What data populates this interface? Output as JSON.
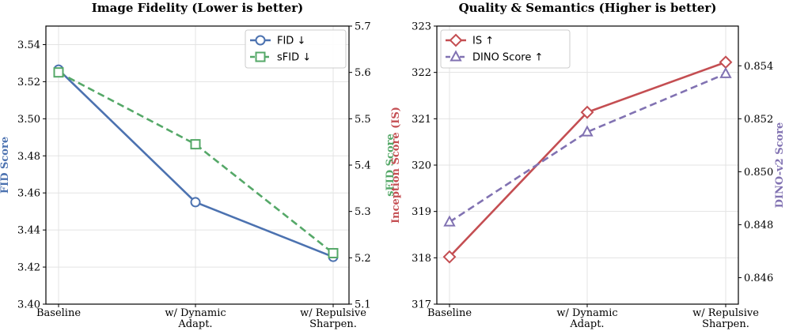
{
  "chart_data": [
    {
      "type": "line",
      "title": "Image Fidelity (Lower is better)",
      "categories": [
        "Baseline",
        "w/ Dynamic\nAdapt.",
        "w/ Repulsive\nSharpen."
      ],
      "left_axis": {
        "label": "FID Score",
        "color": "#4c72b0",
        "ylim": [
          3.4,
          3.55
        ],
        "ticks": [
          "3.40",
          "3.42",
          "3.44",
          "3.46",
          "3.48",
          "3.50",
          "3.52",
          "3.54"
        ]
      },
      "right_axis": {
        "label": "sFID Score",
        "color": "#55a868",
        "ylim": [
          5.1,
          5.7
        ],
        "ticks": [
          "5.1",
          "5.2",
          "5.3",
          "5.4",
          "5.5",
          "5.6",
          "5.7"
        ]
      },
      "series": [
        {
          "name": "FID ↓",
          "axis": "left",
          "values": [
            3.5265,
            3.455,
            3.4255
          ],
          "color": "#4c72b0",
          "marker": "circle",
          "dash": "solid"
        },
        {
          "name": "sFID ↓",
          "axis": "right",
          "values": [
            5.6,
            5.445,
            5.21
          ],
          "color": "#55a868",
          "marker": "square",
          "dash": "dashed"
        }
      ],
      "legend": "top-right",
      "grid": true
    },
    {
      "type": "line",
      "title": "Quality & Semantics (Higher is better)",
      "categories": [
        "Baseline",
        "w/ Dynamic\nAdapt.",
        "w/ Repulsive\nSharpen."
      ],
      "left_axis": {
        "label": "Inception Score (IS)",
        "color": "#c44e52",
        "ylim": [
          317,
          323
        ],
        "ticks": [
          "317",
          "318",
          "319",
          "320",
          "321",
          "322",
          "323"
        ]
      },
      "right_axis": {
        "label": "DINO-v2 Score",
        "color": "#8172b2",
        "ylim": [
          0.845,
          0.8555
        ],
        "ticks": [
          "0.846",
          "0.848",
          "0.850",
          "0.852",
          "0.854"
        ]
      },
      "series": [
        {
          "name": "IS ↑",
          "axis": "left",
          "values": [
            318.02,
            321.14,
            322.22
          ],
          "color": "#c44e52",
          "marker": "diamond",
          "dash": "solid"
        },
        {
          "name": "DINO Score ↑",
          "axis": "right",
          "values": [
            0.8481,
            0.8515,
            0.8537
          ],
          "color": "#8172b2",
          "marker": "triangle",
          "dash": "dashed"
        }
      ],
      "legend": "top-left",
      "grid": true
    }
  ]
}
